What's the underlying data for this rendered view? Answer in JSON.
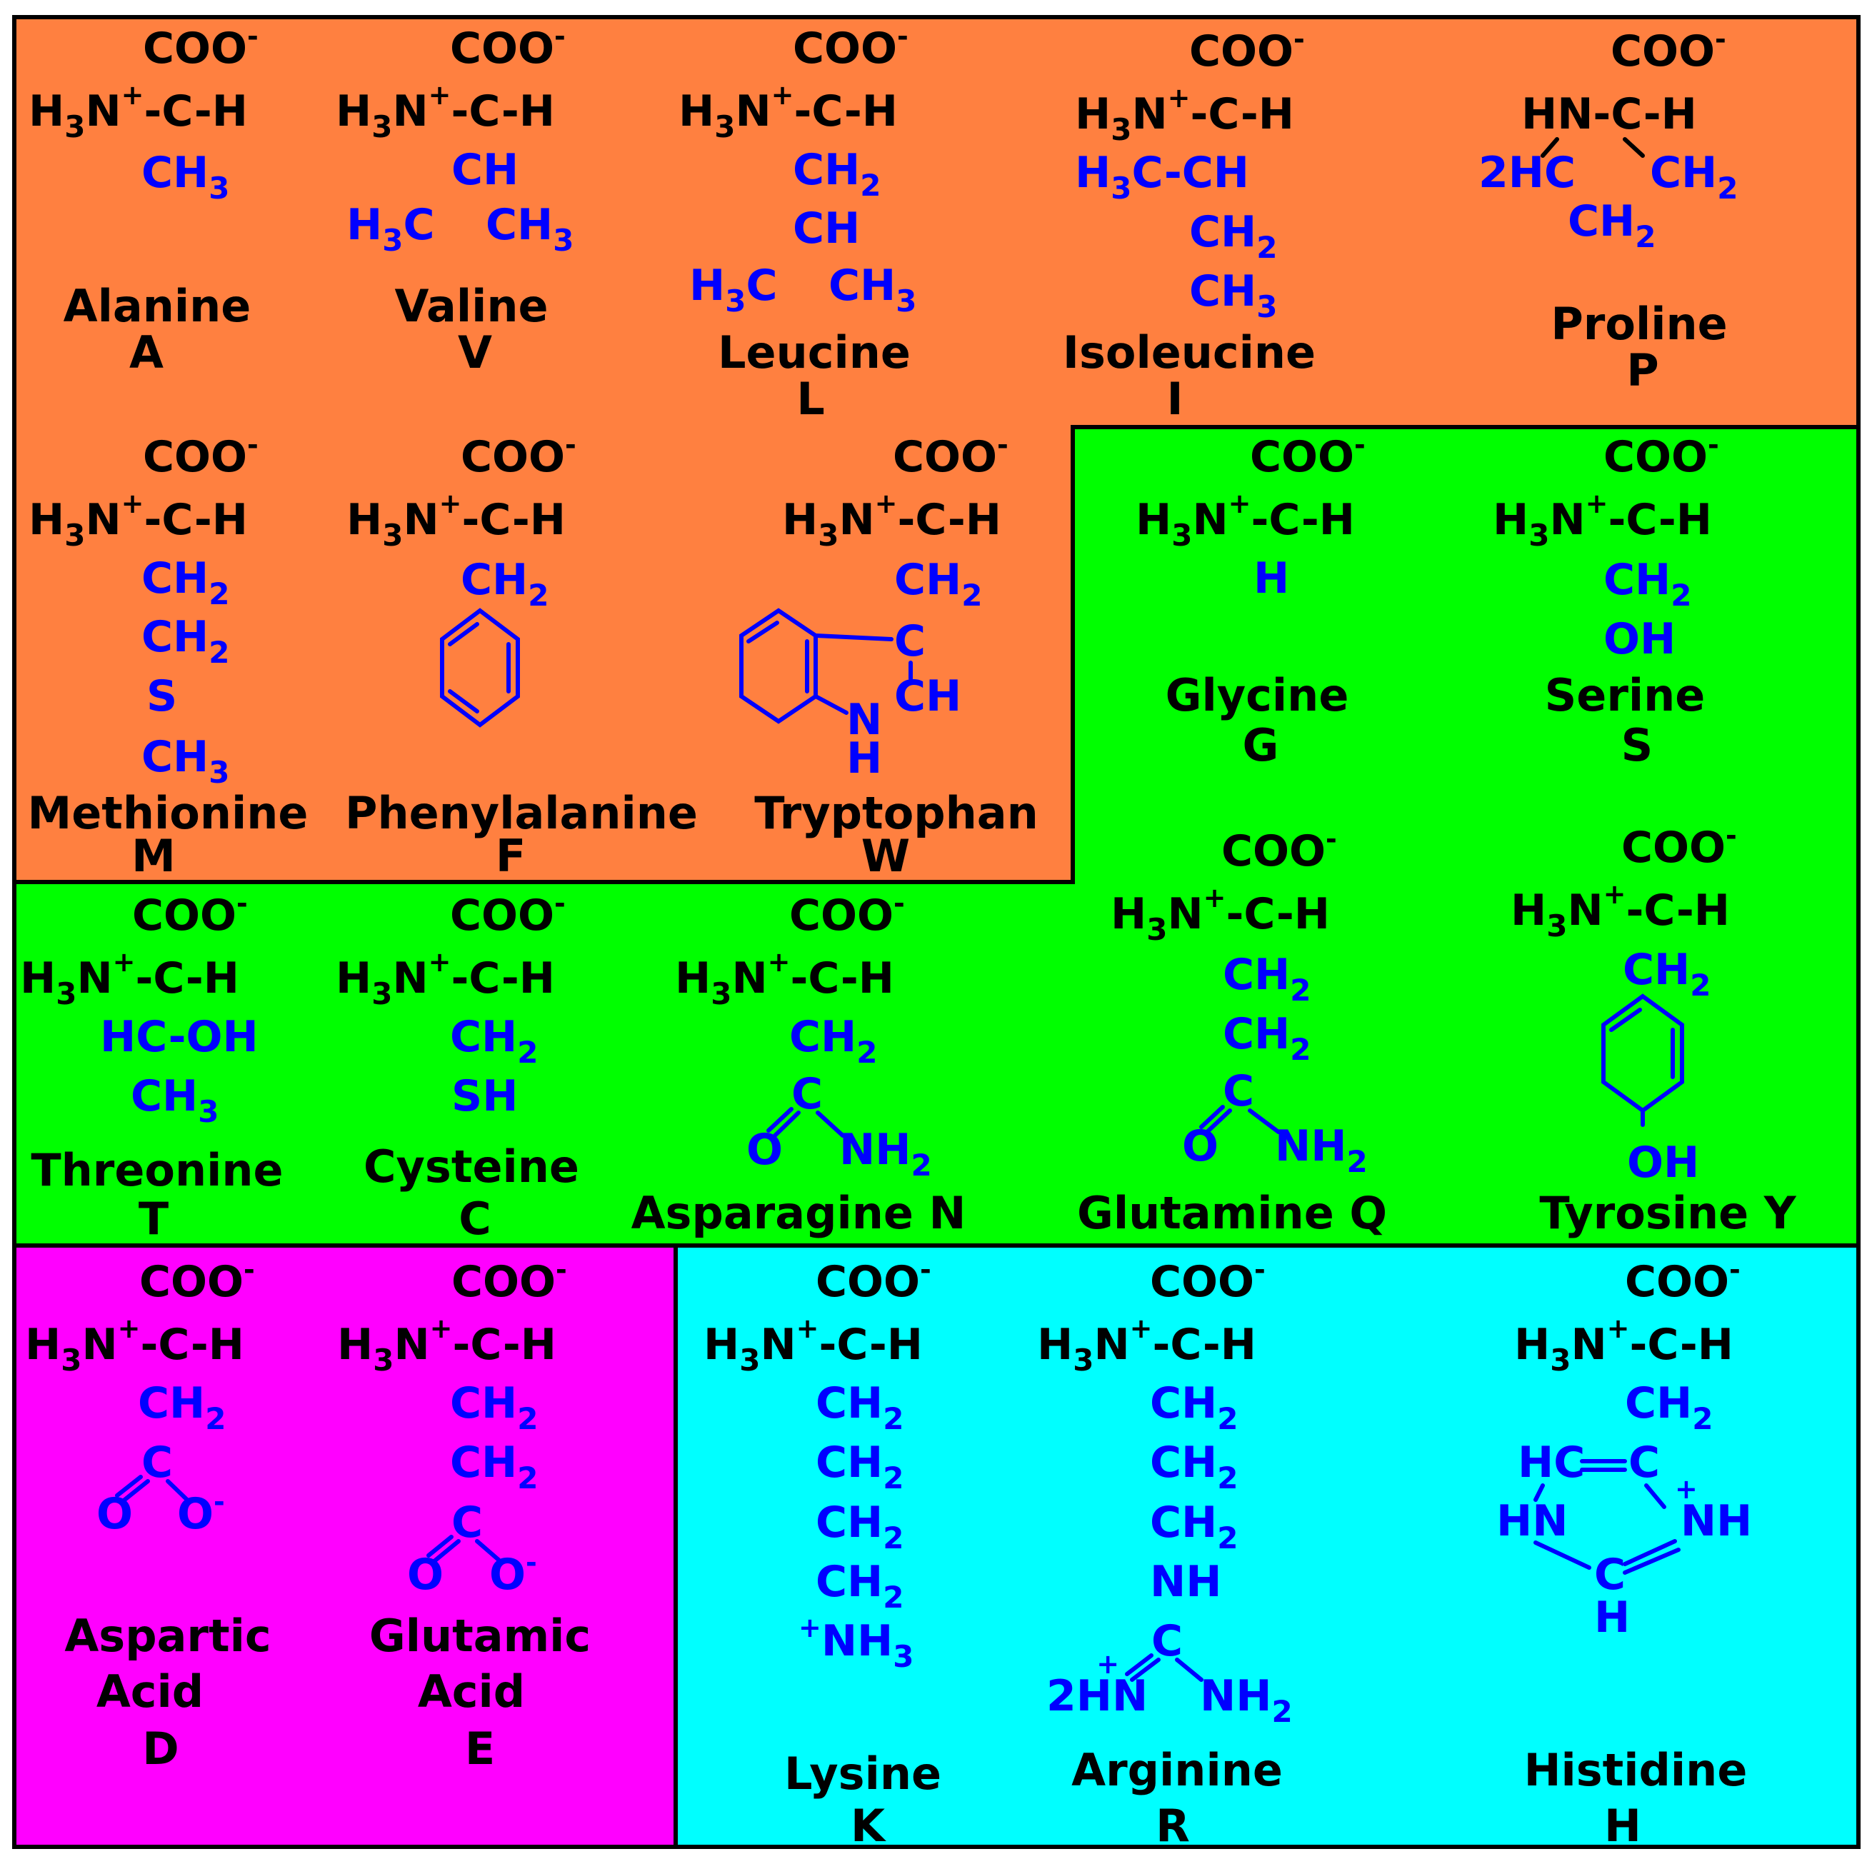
{
  "colors": {
    "hydrophobic": "#ff8040",
    "polar": "#00ff00",
    "acidic": "#ff00ff",
    "basic": "#00ffff",
    "backbone_text": "#000000",
    "side_chain_text": "#0000ff",
    "border": "#000000"
  },
  "amino_acids": [
    {
      "name": "Alanine",
      "code": "A",
      "group": "hydrophobic"
    },
    {
      "name": "Valine",
      "code": "V",
      "group": "hydrophobic"
    },
    {
      "name": "Leucine",
      "code": "L",
      "group": "hydrophobic"
    },
    {
      "name": "Isoleucine",
      "code": "I",
      "group": "hydrophobic"
    },
    {
      "name": "Proline",
      "code": "P",
      "group": "hydrophobic"
    },
    {
      "name": "Methionine",
      "code": "M",
      "group": "hydrophobic"
    },
    {
      "name": "Phenylalanine",
      "code": "F",
      "group": "hydrophobic"
    },
    {
      "name": "Tryptophan",
      "code": "W",
      "group": "hydrophobic"
    },
    {
      "name": "Glycine",
      "code": "G",
      "group": "polar"
    },
    {
      "name": "Serine",
      "code": "S",
      "group": "polar"
    },
    {
      "name": "Threonine",
      "code": "T",
      "group": "polar"
    },
    {
      "name": "Cysteine",
      "code": "C",
      "group": "polar"
    },
    {
      "name": "Asparagine",
      "code": "N",
      "group": "polar"
    },
    {
      "name": "Glutamine",
      "code": "Q",
      "group": "polar"
    },
    {
      "name": "Tyrosine",
      "code": "Y",
      "group": "polar"
    },
    {
      "name": "Aspartic Acid",
      "code": "D",
      "group": "acidic"
    },
    {
      "name": "Glutamic Acid",
      "code": "E",
      "group": "acidic"
    },
    {
      "name": "Lysine",
      "code": "K",
      "group": "basic"
    },
    {
      "name": "Arginine",
      "code": "R",
      "group": "basic"
    },
    {
      "name": "Histidine",
      "code": "H",
      "group": "basic"
    }
  ],
  "chem": {
    "carboxylate": "COO",
    "minus": "-",
    "plus": "+",
    "amino_backbone": "H3N-C-H",
    "proline_backbone": "HN-C-H",
    "H3": "H3",
    "N": "N",
    "dash_c_h": "-C-H",
    "HN_C_H": "HN-C-H",
    "CH3": "CH3",
    "CH2": "CH2",
    "CH": "CH",
    "H3C": "H3C",
    "H3C_CH": "H3C-CH",
    "twoHC": "2HC",
    "S": "S",
    "OH": "OH",
    "SH": "SH",
    "HC_OH": "HC-OH",
    "C": "C",
    "O": "O",
    "NH2": "NH2",
    "NH3": "NH3",
    "NH": "NH",
    "H": "H",
    "HN": "HN",
    "twoHN": "2HN",
    "HC": "HC",
    "NH_plus": "NH"
  }
}
